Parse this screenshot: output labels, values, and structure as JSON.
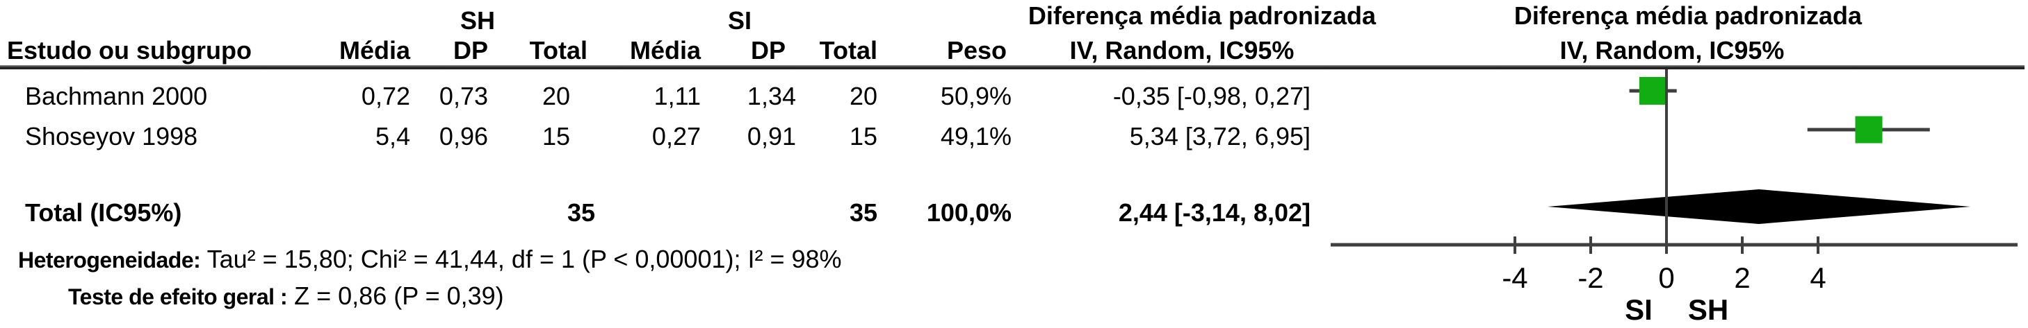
{
  "table": {
    "group1": "SH",
    "group2": "SI",
    "cols": {
      "study": "Estudo ou subgrupo",
      "mean": "Média",
      "sd": "DP",
      "total": "Total",
      "weight": "Peso",
      "effect": "IV, Random, IC95%"
    },
    "effect_header_line1": "Diferença média padronizada",
    "rows": [
      {
        "study": "Bachmann 2000",
        "mean1": "0,72",
        "sd1": "0,73",
        "total1": "20",
        "mean2": "1,11",
        "sd2": "1,34",
        "total2": "20",
        "weight": "50,9%",
        "effect": "-0,35 [-0,98, 0,27]"
      },
      {
        "study": "Shoseyov 1998",
        "mean1": "5,4",
        "sd1": "0,96",
        "total1": "15",
        "mean2": "0,27",
        "sd2": "0,91",
        "total2": "15",
        "weight": "49,1%",
        "effect": "5,34 [3,72, 6,95]"
      }
    ],
    "total_row": {
      "label": "Total (IC95%)",
      "total1": "35",
      "total2": "35",
      "weight": "100,0%",
      "effect": "2,44 [-3,14, 8,02]"
    },
    "heterogeneity_label": "Heterogeneidade:",
    "heterogeneity": "Tau² = 15,80; Chi² = 41,44, df = 1 (P < 0,00001); I² = 98%",
    "overall_label": "Teste de efeito geral :",
    "overall": "Z = 0,86 (P = 0,39)"
  },
  "plot": {
    "header_line1": "Diferença média padronizada",
    "header_line2": "IV, Random, IC95%",
    "axis_left_label": "SI",
    "axis_right_label": "SH"
  },
  "chart_data": {
    "type": "forest",
    "title": "Diferença média padronizada, IV, Random, IC95%",
    "studies": [
      {
        "name": "Bachmann 2000",
        "estimate": -0.35,
        "ci_low": -0.98,
        "ci_high": 0.27,
        "weight_pct": 50.9,
        "sh": {
          "mean": 0.72,
          "sd": 0.73,
          "n": 20
        },
        "si": {
          "mean": 1.11,
          "sd": 1.34,
          "n": 20
        }
      },
      {
        "name": "Shoseyov 1998",
        "estimate": 5.34,
        "ci_low": 3.72,
        "ci_high": 6.95,
        "weight_pct": 49.1,
        "sh": {
          "mean": 5.4,
          "sd": 0.96,
          "n": 15
        },
        "si": {
          "mean": 0.27,
          "sd": 0.91,
          "n": 15
        }
      }
    ],
    "total": {
      "estimate": 2.44,
      "ci_low": -3.14,
      "ci_high": 8.02,
      "n_sh": 35,
      "n_si": 35,
      "weight_pct": 100.0
    },
    "heterogeneity": {
      "tau2": 15.8,
      "chi2": 41.44,
      "df": 1,
      "p": "< 0,00001",
      "i2_pct": 98
    },
    "overall_effect": {
      "z": 0.86,
      "p": 0.39
    },
    "xaxis": {
      "ticks": [
        -4,
        -2,
        0,
        2,
        4
      ],
      "tick_labels": [
        "-4",
        "-2",
        "0",
        "2",
        "4"
      ],
      "zero_line": true,
      "left_label": "SI",
      "right_label": "SH"
    },
    "colors": {
      "square": "#12ad12",
      "diamond": "#000000",
      "line": "#3f3f3f"
    }
  }
}
